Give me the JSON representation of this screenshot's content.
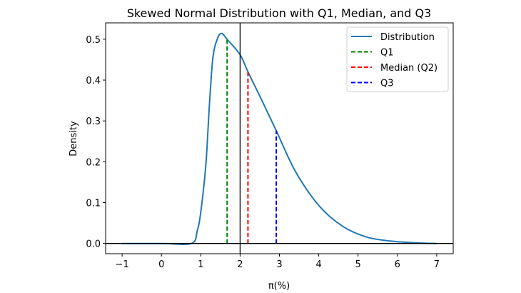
{
  "chart_data": {
    "type": "line",
    "title": "Skewed Normal Distribution with Q1, Median, and Q3",
    "xlabel": "π(%)",
    "ylabel": "Density",
    "xlim": [
      -1.42,
      7.42
    ],
    "ylim": [
      -0.025,
      0.54
    ],
    "xticks": [
      -1,
      0,
      1,
      2,
      3,
      4,
      5,
      6,
      7
    ],
    "yticks": [
      0.0,
      0.1,
      0.2,
      0.3,
      0.4,
      0.5
    ],
    "ytick_labels": [
      "0.0",
      "0.1",
      "0.2",
      "0.3",
      "0.4",
      "0.5"
    ],
    "grid": false,
    "legend_position": "top-right",
    "series": [
      {
        "name": "Distribution",
        "color": "#1f77b4",
        "x": [
          -1.0,
          0.0,
          0.76,
          0.91,
          1.0,
          1.13,
          1.22,
          1.31,
          1.43,
          1.53,
          1.67,
          2.0,
          2.2,
          2.52,
          2.92,
          3.41,
          4.01,
          4.61,
          5.21,
          5.82,
          6.4,
          7.0
        ],
        "y": [
          0.0,
          0.0,
          0.0,
          0.031,
          0.077,
          0.194,
          0.34,
          0.456,
          0.503,
          0.514,
          0.5,
          0.462,
          0.42,
          0.357,
          0.276,
          0.176,
          0.092,
          0.042,
          0.016,
          0.006,
          0.002,
          0.0
        ]
      }
    ],
    "quantile_lines": [
      {
        "name": "Q1",
        "x": 1.67,
        "y": 0.5,
        "color": "#008000"
      },
      {
        "name": "Median (Q2)",
        "x": 2.2,
        "y": 0.42,
        "color": "#ff0000"
      },
      {
        "name": "Q3",
        "x": 2.92,
        "y": 0.276,
        "color": "#0000ff"
      }
    ],
    "reference_lines": {
      "vertical_x": 2,
      "horizontal_y": 0,
      "color": "#000000"
    }
  }
}
